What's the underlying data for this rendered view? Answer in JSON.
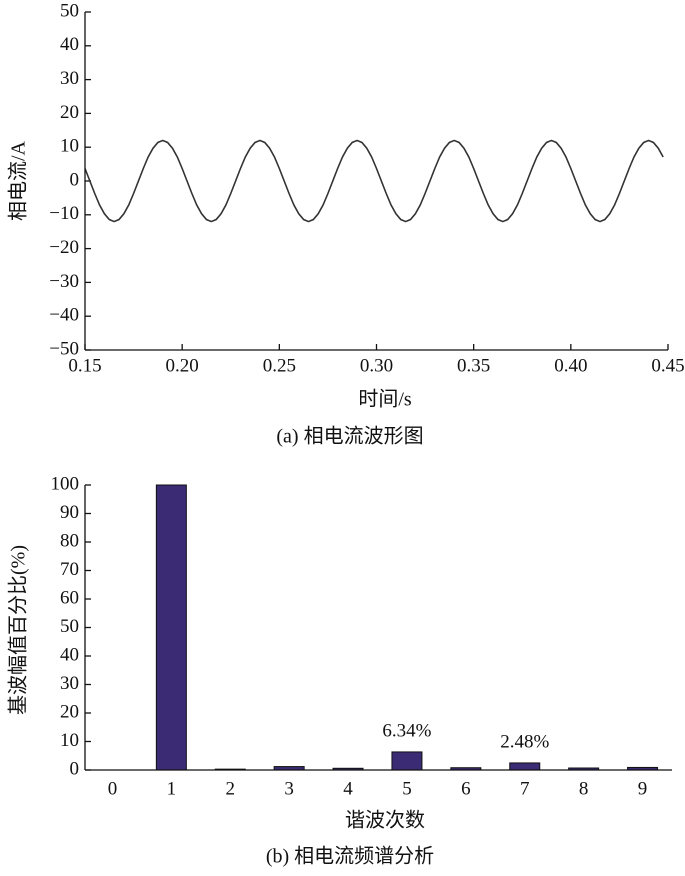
{
  "chart_data": [
    {
      "type": "line",
      "xlabel": "时间/s",
      "ylabel": "相电流/A",
      "caption": "(a) 相电流波形图",
      "color": "#333333",
      "x": [
        0.15,
        0.1525,
        0.155,
        0.1575,
        0.16,
        0.1625,
        0.165,
        0.1675,
        0.17,
        0.1725,
        0.175,
        0.1775,
        0.18,
        0.1825,
        0.185,
        0.1875,
        0.19,
        0.1925,
        0.195,
        0.1975,
        0.2,
        0.2025,
        0.205,
        0.2075,
        0.21,
        0.2125,
        0.215,
        0.2175,
        0.22,
        0.2225,
        0.225,
        0.2275,
        0.23,
        0.2325,
        0.235,
        0.2375,
        0.24,
        0.2425,
        0.245,
        0.2475,
        0.25,
        0.2525,
        0.255,
        0.2575,
        0.26,
        0.2625,
        0.265,
        0.2675,
        0.27,
        0.2725,
        0.275,
        0.2775,
        0.28,
        0.2825,
        0.285,
        0.2875,
        0.29,
        0.2925,
        0.295,
        0.2975,
        0.3,
        0.3025,
        0.305,
        0.3075,
        0.31,
        0.3125,
        0.315,
        0.3175,
        0.32,
        0.3225,
        0.325,
        0.3275,
        0.33,
        0.3325,
        0.335,
        0.3375,
        0.34,
        0.3425,
        0.345,
        0.3475,
        0.35,
        0.3525,
        0.355,
        0.3575,
        0.36,
        0.3625,
        0.365,
        0.3675,
        0.37,
        0.3725,
        0.375,
        0.3775,
        0.38,
        0.3825,
        0.385,
        0.3875,
        0.39,
        0.3925,
        0.395,
        0.3975,
        0.4,
        0.4025,
        0.405,
        0.4075,
        0.41,
        0.4125,
        0.415,
        0.4175,
        0.42,
        0.4225,
        0.425,
        0.4275,
        0.43,
        0.4325,
        0.435,
        0.4375,
        0.44,
        0.4425,
        0.445,
        0.4475
      ],
      "values": [
        3.7,
        0,
        -3.7,
        -7.1,
        -9.7,
        -11.4,
        -12,
        -11.4,
        -9.7,
        -7.1,
        -3.7,
        0,
        3.7,
        7.1,
        9.7,
        11.4,
        12,
        11.4,
        9.7,
        7.1,
        3.7,
        0,
        -3.7,
        -7.1,
        -9.7,
        -11.4,
        -12,
        -11.4,
        -9.7,
        -7.1,
        -3.7,
        0,
        3.7,
        7.1,
        9.7,
        11.4,
        12,
        11.4,
        9.7,
        7.1,
        3.7,
        0,
        -3.7,
        -7.1,
        -9.7,
        -11.4,
        -12,
        -11.4,
        -9.7,
        -7.1,
        -3.7,
        0,
        3.7,
        7.1,
        9.7,
        11.4,
        12,
        11.4,
        9.7,
        7.1,
        3.7,
        0,
        -3.7,
        -7.1,
        -9.7,
        -11.4,
        -12,
        -11.4,
        -9.7,
        -7.1,
        -3.7,
        0,
        3.7,
        7.1,
        9.7,
        11.4,
        12,
        11.4,
        9.7,
        7.1,
        3.7,
        0,
        -3.7,
        -7.1,
        -9.7,
        -11.4,
        -12,
        -11.4,
        -9.7,
        -7.1,
        -3.7,
        0,
        3.7,
        7.1,
        9.7,
        11.4,
        12,
        11.4,
        9.7,
        7.1,
        3.7,
        0,
        -3.7,
        -7.1,
        -9.7,
        -11.4,
        -12,
        -11.4,
        -9.7,
        -7.1,
        -3.7,
        0,
        3.7,
        7.1,
        9.7,
        11.4,
        12,
        11.4,
        9.7,
        7.1
      ],
      "xlim": [
        0.15,
        0.45
      ],
      "xticks": [
        0.15,
        {
          "value": 0.2,
          "label": "0.20"
        },
        0.25,
        {
          "value": 0.3,
          "label": "0.30"
        },
        0.35,
        {
          "value": 0.4,
          "label": "0.40"
        },
        0.45
      ],
      "ylim": [
        -50,
        50
      ],
      "yticks": [
        {
          "value": -50,
          "label": "−50"
        },
        {
          "value": -40,
          "label": "−40"
        },
        {
          "value": -30,
          "label": "−30"
        },
        {
          "value": -20,
          "label": "−20"
        },
        {
          "value": -10,
          "label": "−10"
        },
        0,
        10,
        20,
        30,
        40,
        50
      ]
    },
    {
      "type": "bar",
      "xlabel": "谐波次数",
      "ylabel": "基波幅值百分比(%)",
      "caption": "(b) 相电流频谱分析",
      "color": "#3b2a74",
      "categories": [
        "0",
        "1",
        "2",
        "3",
        "4",
        "5",
        "6",
        "7",
        "8",
        "9"
      ],
      "values": [
        0,
        100,
        0.3,
        1.2,
        0.6,
        6.34,
        0.8,
        2.48,
        0.7,
        0.9
      ],
      "value_labels": [
        null,
        null,
        null,
        null,
        null,
        "6.34%",
        null,
        "2.48%",
        null,
        null
      ],
      "ylim": [
        0,
        100
      ],
      "yticks": [
        0,
        10,
        20,
        30,
        40,
        50,
        60,
        70,
        80,
        90,
        100
      ]
    }
  ]
}
